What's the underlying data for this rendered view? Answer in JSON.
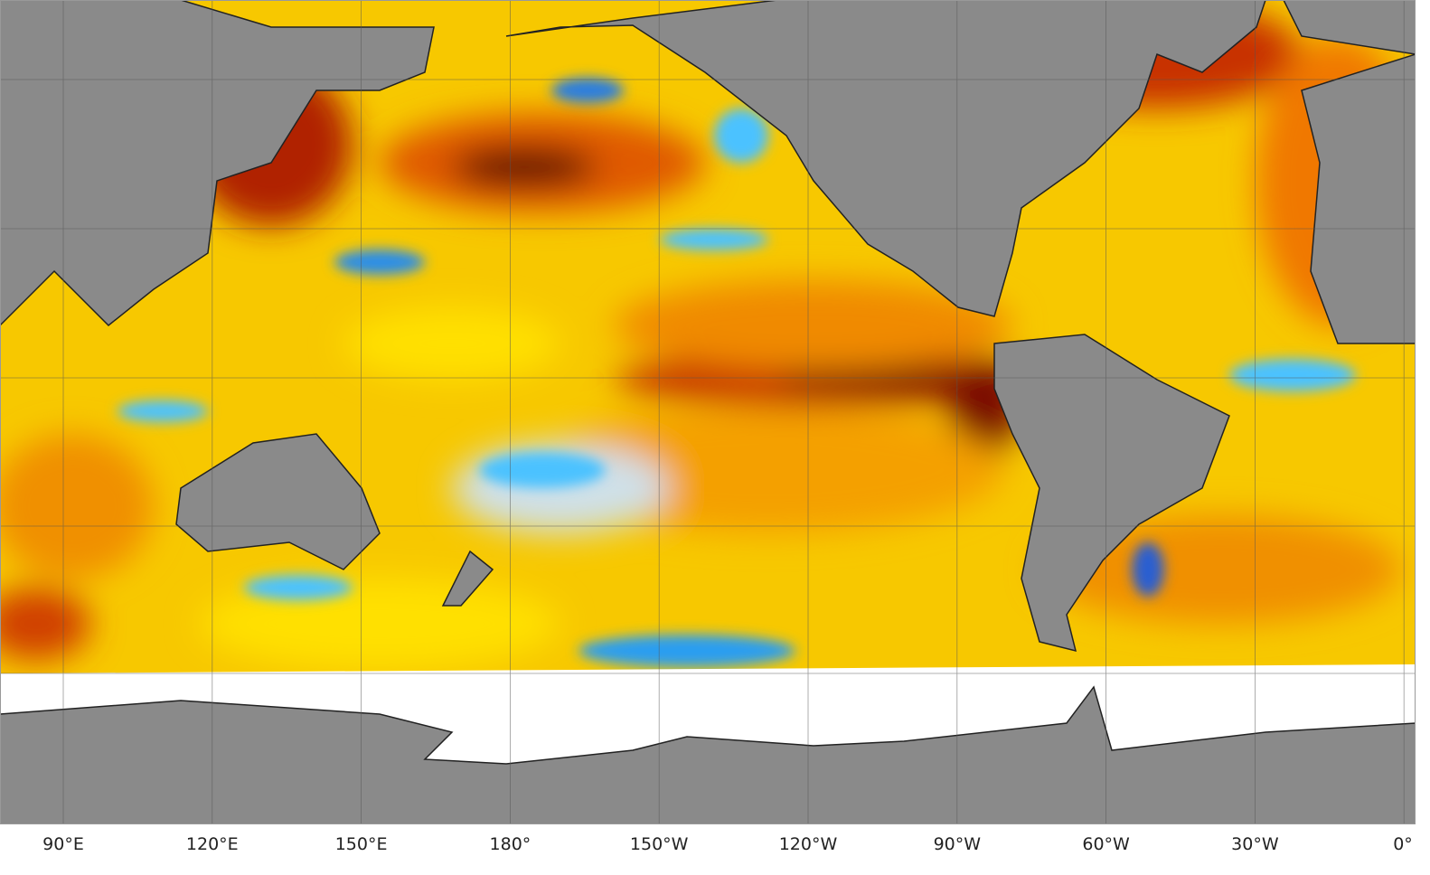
{
  "axis": {
    "longitude_labels": [
      "90°E",
      "120°E",
      "150°E",
      "180°",
      "150°W",
      "120°W",
      "90°W",
      "60°W",
      "30°W",
      "0°"
    ]
  }
}
